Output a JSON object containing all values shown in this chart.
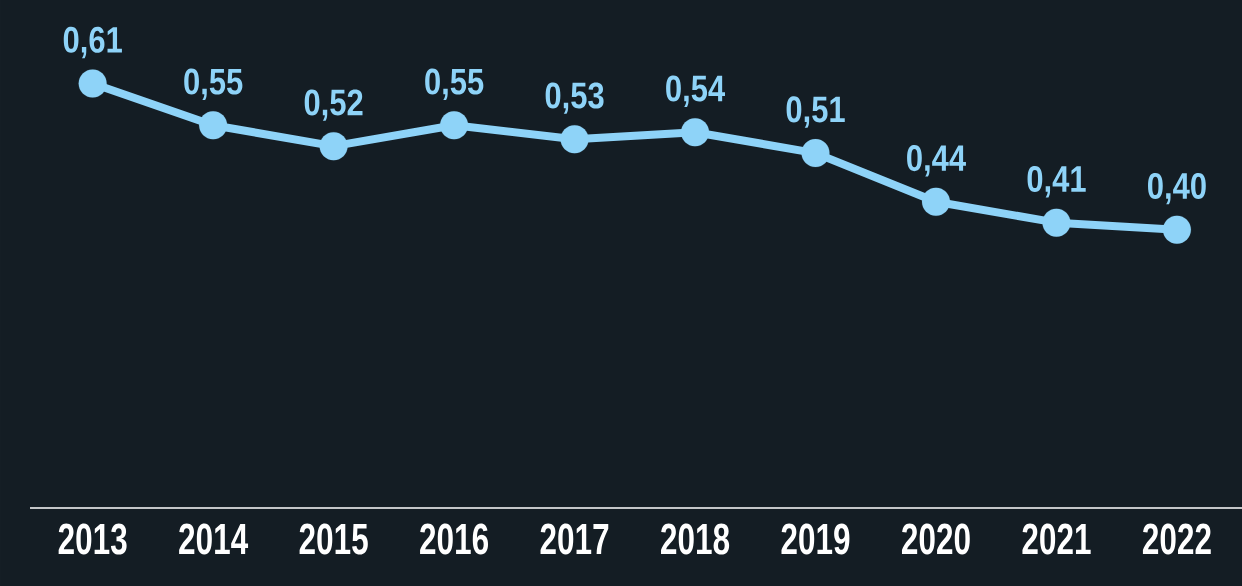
{
  "chart_data": {
    "type": "line",
    "categories": [
      "2013",
      "2014",
      "2015",
      "2016",
      "2017",
      "2018",
      "2019",
      "2020",
      "2021",
      "2022"
    ],
    "series": [
      {
        "color": "#8ed3f8",
        "values": [
          0.61,
          0.55,
          0.52,
          0.55,
          0.53,
          0.54,
          0.51,
          0.44,
          0.41,
          0.4
        ],
        "value_labels": [
          "0,61",
          "0,55",
          "0,52",
          "0,55",
          "0,53",
          "0,54",
          "0,51",
          "0,44",
          "0,41",
          "0,40"
        ]
      }
    ],
    "ylim": [
      0,
      0.73
    ],
    "marker": "circle",
    "line_style": "solid",
    "tick_labels": "x"
  }
}
